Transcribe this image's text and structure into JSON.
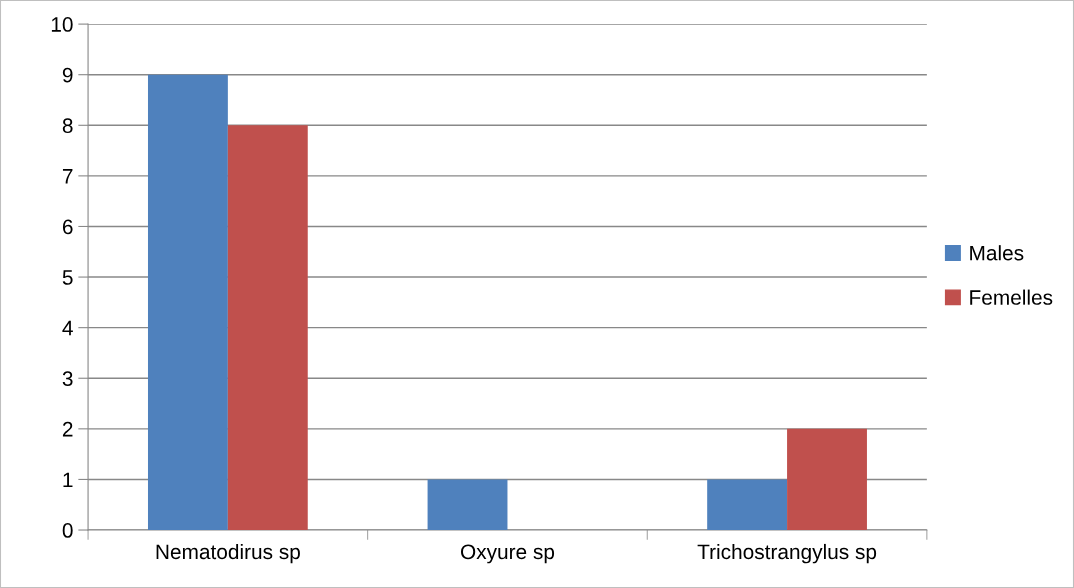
{
  "chart_data": {
    "type": "bar",
    "categories": [
      "Nematodirus sp",
      "Oxyure sp",
      "Trichostrangylus sp"
    ],
    "series": [
      {
        "name": "Males",
        "color": "#4f81bd",
        "values": [
          9,
          1,
          1
        ]
      },
      {
        "name": "Femelles",
        "color": "#c0504d",
        "values": [
          8,
          0,
          2
        ]
      }
    ],
    "ylim": [
      0,
      10
    ],
    "yticks": [
      0,
      1,
      2,
      3,
      4,
      5,
      6,
      7,
      8,
      9,
      10
    ],
    "grid": "y",
    "legend": "right"
  }
}
